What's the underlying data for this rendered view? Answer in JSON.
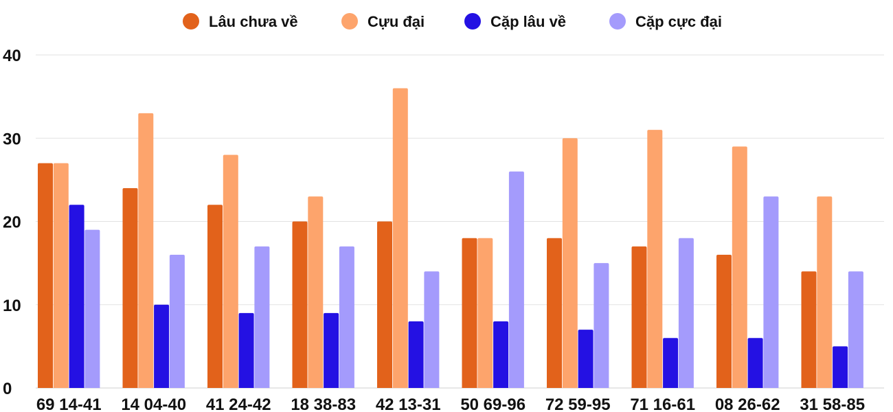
{
  "chart_data": {
    "type": "bar",
    "title": "",
    "xlabel": "",
    "ylabel": "",
    "ylim": [
      0,
      40
    ],
    "yticks": [
      "0",
      "10",
      "20",
      "30",
      "40"
    ],
    "grid": true,
    "legend_position": "top-center",
    "categories": [
      "69 14-41",
      "14 04-40",
      "41 24-42",
      "18 38-83",
      "42 13-31",
      "50 69-96",
      "72 59-95",
      "71 16-61",
      "08 26-62",
      "31 58-85"
    ],
    "series": [
      {
        "name": "Lâu chưa về",
        "color": "#e2621b",
        "values": [
          27,
          24,
          22,
          20,
          20,
          18,
          18,
          17,
          16,
          14
        ]
      },
      {
        "name": "Cựu đại",
        "color": "#fda46c",
        "values": [
          27,
          33,
          28,
          23,
          36,
          18,
          30,
          31,
          29,
          23
        ]
      },
      {
        "name": "Cặp lâu về",
        "color": "#2411e3",
        "values": [
          22,
          10,
          9,
          9,
          8,
          8,
          7,
          6,
          6,
          5
        ]
      },
      {
        "name": "Cặp cực đại",
        "color": "#a49bfc",
        "values": [
          19,
          16,
          17,
          17,
          14,
          26,
          15,
          18,
          23,
          14
        ]
      }
    ]
  }
}
